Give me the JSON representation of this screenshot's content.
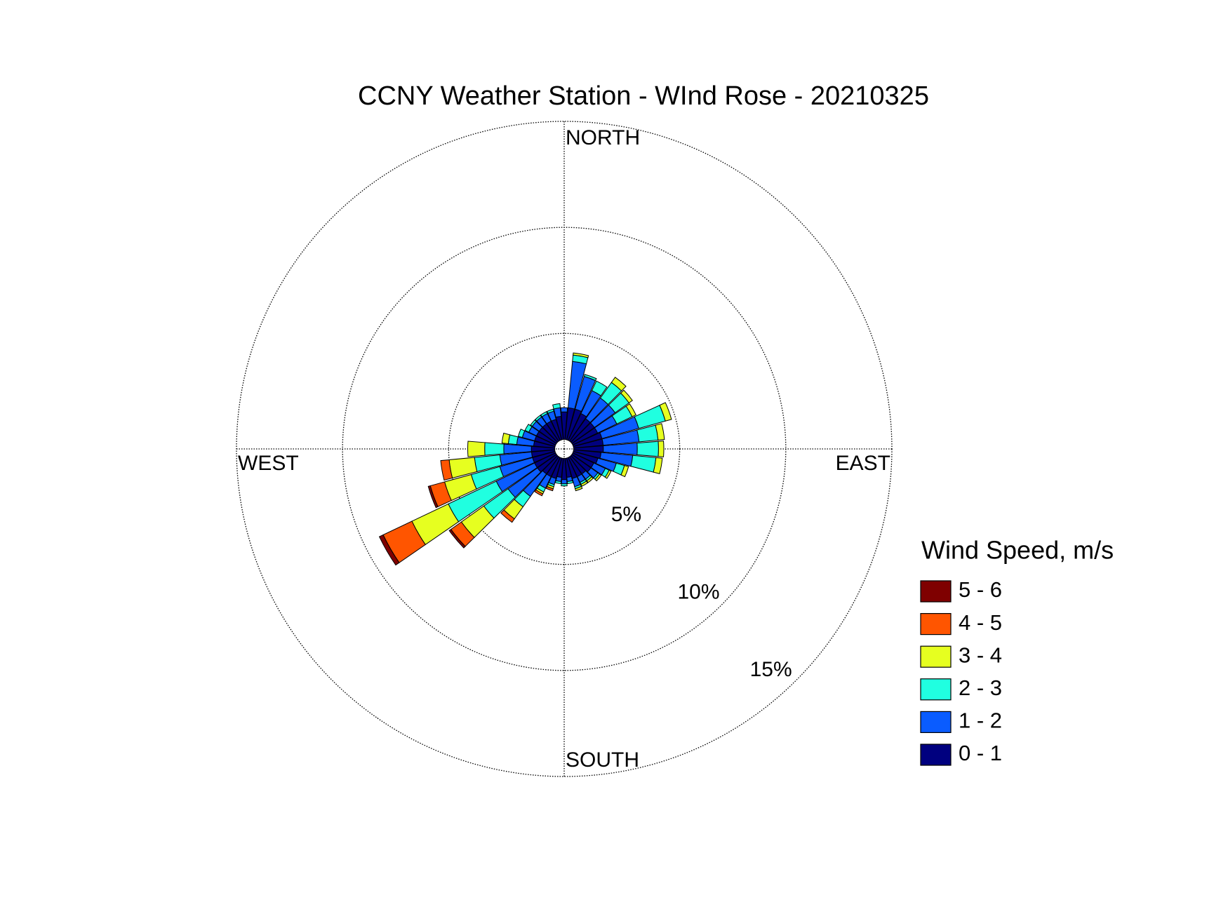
{
  "chart_data": {
    "type": "windrose",
    "title": "CCNY Weather Station - WInd Rose - 20210325",
    "legend_title": "Wind Speed, m/s",
    "directions": [
      0,
      10,
      20,
      30,
      40,
      50,
      60,
      70,
      80,
      90,
      100,
      110,
      120,
      130,
      140,
      150,
      160,
      170,
      180,
      190,
      200,
      210,
      220,
      230,
      240,
      250,
      260,
      270,
      280,
      290,
      300,
      310,
      320,
      330,
      340,
      350
    ],
    "xticks": [
      {
        "value": 0,
        "label": "NORTH"
      },
      {
        "value": 90,
        "label": "EAST"
      },
      {
        "value": 180,
        "label": "SOUTH"
      },
      {
        "value": 270,
        "label": "WEST"
      }
    ],
    "rlim": [
      0,
      15
    ],
    "rticks": [
      {
        "value": 5,
        "label": "5%"
      },
      {
        "value": 10,
        "label": "10%"
      },
      {
        "value": 15,
        "label": "15%"
      }
    ],
    "grid": true,
    "series": [
      {
        "name": "0 - 1",
        "color": "#00007f",
        "values": [
          1.3,
          1.5,
          1.5,
          1.4,
          1.3,
          1.3,
          1.3,
          1.4,
          1.4,
          1.4,
          1.3,
          1.2,
          1.1,
          1.1,
          1.0,
          1.0,
          1.0,
          0.9,
          1.0,
          0.9,
          1.0,
          1.0,
          1.0,
          1.1,
          1.1,
          1.1,
          1.1,
          1.1,
          1.0,
          1.0,
          1.0,
          1.0,
          1.0,
          1.0,
          1.0,
          1.1
        ]
      },
      {
        "name": "1 - 2",
        "color": "#0a5cff",
        "values": [
          0.2,
          2.2,
          1.6,
          1.2,
          1.2,
          1.2,
          1.0,
          1.8,
          1.7,
          1.6,
          1.5,
          0.9,
          0.6,
          0.4,
          0.3,
          0.3,
          0.4,
          0.2,
          0.2,
          0.2,
          0.3,
          0.6,
          1.3,
          1.7,
          2.0,
          1.6,
          1.5,
          1.3,
          0.8,
          0.6,
          0.4,
          0.4,
          0.4,
          0.4,
          0.4,
          0.4
        ]
      },
      {
        "name": "2 - 3",
        "color": "#20ffe0",
        "values": [
          0,
          0.3,
          0.1,
          0.5,
          0.9,
          0.8,
          0.8,
          1.3,
          0.9,
          1.0,
          1.1,
          0.4,
          0.2,
          0.1,
          0.1,
          0.1,
          0.1,
          0.1,
          0.1,
          0.1,
          0.1,
          0.2,
          0.6,
          1.4,
          2.5,
          1.4,
          1.2,
          0.9,
          0.4,
          0.2,
          0.2,
          0.1,
          0.1,
          0.1,
          0.1,
          0.2
        ]
      },
      {
        "name": "3 - 4",
        "color": "#e6ff20",
        "values": [
          0,
          0.1,
          0,
          0,
          0.3,
          0.2,
          0.2,
          0.3,
          0.3,
          0.25,
          0.3,
          0.2,
          0.1,
          0.1,
          0.1,
          0.1,
          0.1,
          0,
          0,
          0,
          0.1,
          0.1,
          0.7,
          1.3,
          1.9,
          1.3,
          1.2,
          0.8,
          0.3,
          0,
          0,
          0,
          0,
          0,
          0,
          0
        ]
      },
      {
        "name": "4 - 5",
        "color": "#ff5500",
        "values": [
          0,
          0,
          0,
          0,
          0,
          0,
          0,
          0,
          0,
          0,
          0,
          0,
          0,
          0,
          0,
          0,
          0,
          0,
          0,
          0,
          0.1,
          0.1,
          0.2,
          0.6,
          1.5,
          0.7,
          0.4,
          0,
          0,
          0,
          0,
          0,
          0,
          0,
          0,
          0
        ]
      },
      {
        "name": "5 - 6",
        "color": "#7f0000",
        "values": [
          0,
          0,
          0,
          0,
          0,
          0,
          0,
          0,
          0,
          0,
          0,
          0,
          0,
          0,
          0,
          0,
          0,
          0,
          0,
          0,
          0,
          0,
          0,
          0.1,
          0.2,
          0.1,
          0,
          0,
          0,
          0,
          0,
          0,
          0,
          0,
          0,
          0
        ]
      }
    ]
  }
}
